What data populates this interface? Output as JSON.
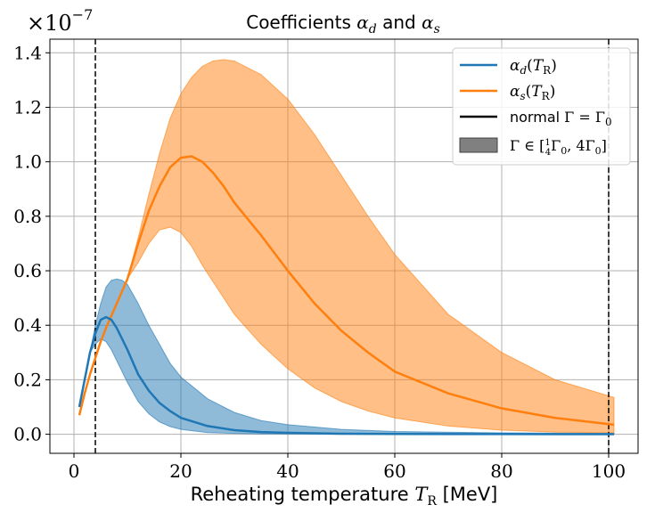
{
  "chart_data": {
    "type": "line",
    "title": "Coefficients αd and αs",
    "title_parts": {
      "prefix": "Coefficients ",
      "sym1": "α",
      "sub1": "d",
      "mid": " and ",
      "sym2": "α",
      "sub2": "s"
    },
    "y_multiplier": {
      "base": "×10",
      "exp": "−7"
    },
    "xlabel": {
      "text": "Reheating temperature ",
      "sym": "T",
      "sub": "R",
      "unit": " [MeV]"
    },
    "ylabel": "",
    "xlim": [
      -4.5,
      105.5
    ],
    "ylim": [
      -0.07,
      1.45
    ],
    "xticks": [
      0,
      20,
      40,
      60,
      80,
      100
    ],
    "yticks": [
      0.0,
      0.2,
      0.4,
      0.6,
      0.8,
      1.0,
      1.2,
      1.4
    ],
    "xtick_labels": [
      "0",
      "20",
      "40",
      "60",
      "80",
      "100"
    ],
    "ytick_labels": [
      "0.0",
      "0.2",
      "0.4",
      "0.6",
      "0.8",
      "1.0",
      "1.2",
      "1.4"
    ],
    "grid": true,
    "vlines": [
      4,
      100
    ],
    "colors": {
      "alpha_d": "#1f77b4",
      "alpha_s": "#ff7f0e",
      "normal": "#000000",
      "band": "#808080"
    },
    "legend": {
      "placement": "top-right",
      "entries": [
        {
          "label": "αd(TR)",
          "sym": "α",
          "sub": "d",
          "arg": "T",
          "argsub": "R"
        },
        {
          "label": "αs(TR)",
          "sym": "α",
          "sub": "s",
          "arg": "T",
          "argsub": "R"
        },
        {
          "label": "normal Γ = Γ0",
          "text": "normal ",
          "math": "Γ = Γ",
          "sub": "0"
        },
        {
          "label": "Γ ∈ [¼Γ0, 4Γ0]",
          "math_a": "Γ ∈ [",
          "frac_num": "1",
          "frac_den": "4",
          "math_b": "Γ",
          "sub_b": "0",
          "math_c": ", 4Γ",
          "sub_c": "0",
          "math_d": "]"
        }
      ]
    },
    "series": [
      {
        "name": "αd(TR)",
        "x": [
          1,
          2,
          3,
          4,
          5,
          6,
          7,
          8,
          9,
          10,
          12,
          14,
          16,
          18,
          20,
          25,
          30,
          35,
          40,
          50,
          60,
          80,
          101
        ],
        "y": [
          0.1,
          0.2,
          0.3,
          0.37,
          0.42,
          0.43,
          0.42,
          0.39,
          0.35,
          0.31,
          0.22,
          0.16,
          0.115,
          0.085,
          0.06,
          0.03,
          0.015,
          0.008,
          0.005,
          0.002,
          0.001,
          0.0005,
          0.0002
        ],
        "band_upper": [
          0.1,
          0.2,
          0.3,
          0.4,
          0.48,
          0.54,
          0.565,
          0.57,
          0.565,
          0.55,
          0.48,
          0.4,
          0.33,
          0.26,
          0.21,
          0.13,
          0.08,
          0.05,
          0.035,
          0.018,
          0.01,
          0.005,
          0.003
        ],
        "band_lower": [
          0.1,
          0.2,
          0.3,
          0.33,
          0.35,
          0.34,
          0.31,
          0.27,
          0.23,
          0.19,
          0.12,
          0.075,
          0.045,
          0.028,
          0.018,
          0.006,
          0.003,
          0.0015,
          0.001,
          0.0005,
          0.0003,
          0.0001,
          0.0
        ]
      },
      {
        "name": "αs(TR)",
        "x": [
          1,
          2,
          3,
          4,
          5,
          6,
          8,
          10,
          12,
          14,
          16,
          18,
          20,
          22,
          24,
          26,
          28,
          30,
          35,
          40,
          45,
          50,
          55,
          60,
          70,
          80,
          90,
          101
        ],
        "y": [
          0.07,
          0.15,
          0.22,
          0.28,
          0.34,
          0.39,
          0.48,
          0.57,
          0.7,
          0.82,
          0.91,
          0.98,
          1.015,
          1.02,
          1.0,
          0.96,
          0.91,
          0.85,
          0.73,
          0.6,
          0.48,
          0.38,
          0.3,
          0.23,
          0.15,
          0.095,
          0.06,
          0.035
        ],
        "band_upper": [
          0.07,
          0.15,
          0.22,
          0.28,
          0.34,
          0.39,
          0.48,
          0.57,
          0.72,
          0.88,
          1.03,
          1.16,
          1.25,
          1.31,
          1.35,
          1.37,
          1.375,
          1.37,
          1.32,
          1.23,
          1.1,
          0.95,
          0.8,
          0.66,
          0.44,
          0.3,
          0.2,
          0.135
        ],
        "band_lower": [
          0.07,
          0.15,
          0.22,
          0.28,
          0.34,
          0.39,
          0.48,
          0.57,
          0.63,
          0.7,
          0.75,
          0.76,
          0.74,
          0.69,
          0.62,
          0.56,
          0.5,
          0.44,
          0.33,
          0.24,
          0.17,
          0.12,
          0.085,
          0.06,
          0.03,
          0.015,
          0.008,
          0.005
        ]
      }
    ]
  }
}
